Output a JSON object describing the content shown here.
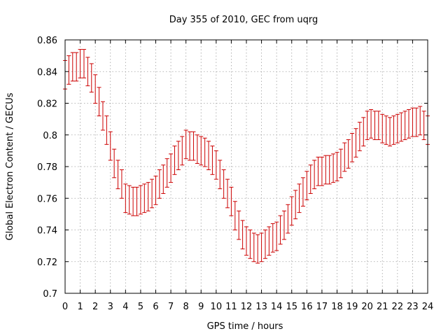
{
  "chart_data": {
    "type": "scatter",
    "title": "Day 355 of 2010, GEC from uqrg",
    "xlabel": "GPS time / hours",
    "ylabel": "Global Electron Content / GECUs",
    "xlim": [
      0,
      24
    ],
    "ylim": [
      0.7,
      0.86
    ],
    "xticks": [
      0,
      1,
      2,
      3,
      4,
      5,
      6,
      7,
      8,
      9,
      10,
      11,
      12,
      13,
      14,
      15,
      16,
      17,
      18,
      19,
      20,
      21,
      22,
      23,
      24
    ],
    "xtick_labels": [
      "0",
      "1",
      "2",
      "3",
      "4",
      "5",
      "6",
      "7",
      "8",
      "9",
      "10",
      "11",
      "12",
      "13",
      "14",
      "15",
      "16",
      "17",
      "18",
      "19",
      "20",
      "21",
      "22",
      "23",
      "24"
    ],
    "yticks": [
      0.7,
      0.72,
      0.74,
      0.76,
      0.78,
      0.8,
      0.82,
      0.84,
      0.86
    ],
    "ytick_labels": [
      "0.7",
      "0.72",
      "0.74",
      "0.76",
      "0.78",
      "0.8",
      "0.82",
      "0.84",
      "0.86"
    ],
    "grid": true,
    "series_color": "#cc0000",
    "error_bar": 0.009,
    "x": [
      0,
      0.25,
      0.5,
      0.75,
      1,
      1.25,
      1.5,
      1.75,
      2,
      2.25,
      2.5,
      2.75,
      3,
      3.25,
      3.5,
      3.75,
      4,
      4.25,
      4.5,
      4.75,
      5,
      5.25,
      5.5,
      5.75,
      6,
      6.25,
      6.5,
      6.75,
      7,
      7.25,
      7.5,
      7.75,
      8,
      8.25,
      8.5,
      8.75,
      9,
      9.25,
      9.5,
      9.75,
      10,
      10.25,
      10.5,
      10.75,
      11,
      11.25,
      11.5,
      11.75,
      12,
      12.25,
      12.5,
      12.75,
      13,
      13.25,
      13.5,
      13.75,
      14,
      14.25,
      14.5,
      14.75,
      15,
      15.25,
      15.5,
      15.75,
      16,
      16.25,
      16.5,
      16.75,
      17,
      17.25,
      17.5,
      17.75,
      18,
      18.25,
      18.5,
      18.75,
      19,
      19.25,
      19.5,
      19.75,
      20,
      20.25,
      20.5,
      20.75,
      21,
      21.25,
      21.5,
      21.75,
      22,
      22.25,
      22.5,
      22.75,
      23,
      23.25,
      23.5,
      23.75,
      24
    ],
    "y": [
      0.838,
      0.841,
      0.843,
      0.843,
      0.845,
      0.845,
      0.84,
      0.836,
      0.829,
      0.821,
      0.812,
      0.803,
      0.793,
      0.782,
      0.775,
      0.769,
      0.76,
      0.759,
      0.758,
      0.758,
      0.759,
      0.76,
      0.761,
      0.763,
      0.765,
      0.769,
      0.772,
      0.776,
      0.779,
      0.784,
      0.787,
      0.79,
      0.794,
      0.793,
      0.793,
      0.791,
      0.79,
      0.789,
      0.787,
      0.784,
      0.781,
      0.775,
      0.769,
      0.763,
      0.758,
      0.749,
      0.743,
      0.737,
      0.733,
      0.731,
      0.729,
      0.728,
      0.729,
      0.731,
      0.733,
      0.735,
      0.736,
      0.74,
      0.743,
      0.747,
      0.752,
      0.756,
      0.76,
      0.764,
      0.768,
      0.772,
      0.775,
      0.777,
      0.777,
      0.778,
      0.778,
      0.779,
      0.78,
      0.782,
      0.786,
      0.788,
      0.792,
      0.795,
      0.799,
      0.802,
      0.806,
      0.807,
      0.806,
      0.806,
      0.804,
      0.803,
      0.802,
      0.803,
      0.804,
      0.805,
      0.806,
      0.807,
      0.808,
      0.808,
      0.809,
      0.806,
      0.803
    ]
  }
}
